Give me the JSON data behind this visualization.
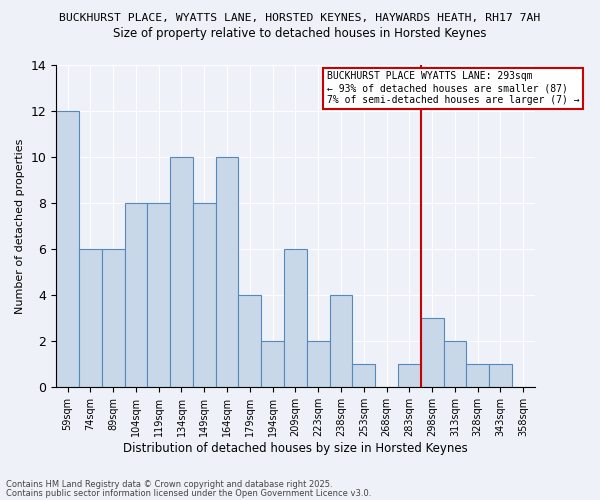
{
  "title1": "BUCKHURST PLACE, WYATTS LANE, HORSTED KEYNES, HAYWARDS HEATH, RH17 7AH",
  "title2": "Size of property relative to detached houses in Horsted Keynes",
  "xlabel": "Distribution of detached houses by size in Horsted Keynes",
  "ylabel": "Number of detached properties",
  "categories": [
    "59sqm",
    "74sqm",
    "89sqm",
    "104sqm",
    "119sqm",
    "134sqm",
    "149sqm",
    "164sqm",
    "179sqm",
    "194sqm",
    "209sqm",
    "223sqm",
    "238sqm",
    "253sqm",
    "268sqm",
    "283sqm",
    "298sqm",
    "313sqm",
    "328sqm",
    "343sqm",
    "358sqm"
  ],
  "values": [
    12,
    6,
    6,
    8,
    8,
    10,
    8,
    10,
    4,
    2,
    6,
    2,
    4,
    1,
    0,
    1,
    3,
    2,
    1,
    1,
    0
  ],
  "bar_color": "#c8d8e8",
  "bar_edge_color": "#5588bb",
  "red_line_index": 16,
  "annotation_title": "BUCKHURST PLACE WYATTS LANE: 293sqm",
  "annotation_line1": "← 93% of detached houses are smaller (87)",
  "annotation_line2": "7% of semi-detached houses are larger (7) →",
  "ylim": [
    0,
    14
  ],
  "yticks": [
    0,
    2,
    4,
    6,
    8,
    10,
    12,
    14
  ],
  "footnote1": "Contains HM Land Registry data © Crown copyright and database right 2025.",
  "footnote2": "Contains public sector information licensed under the Open Government Licence v3.0.",
  "bg_color": "#eef2f8",
  "grid_color": "#ffffff",
  "annotation_box_facecolor": "#ffffff",
  "annotation_box_edgecolor": "#cc0000"
}
